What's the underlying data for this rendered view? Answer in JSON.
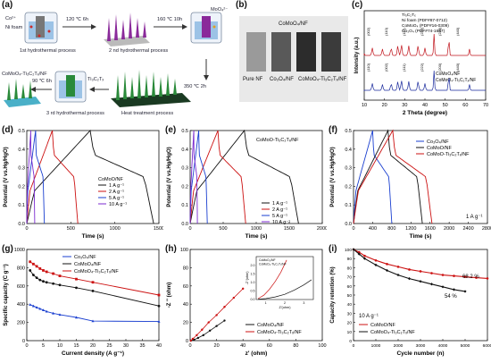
{
  "panels": {
    "a": "(a)",
    "b": "(b)",
    "c": "(c)",
    "d": "(d)",
    "e": "(e)",
    "f": "(f)",
    "g": "(g)",
    "h": "(h)",
    "i": "(i)"
  },
  "schematic": {
    "co_ion": "Co²⁺",
    "ni_foam": "Ni foam",
    "step1_cond": "120 ℃ 6h",
    "step1": "1st hydrothermal process",
    "step2_cond": "160 ℃ 10h",
    "moo4": "MoO₄²⁻",
    "step2": "2 nd hydrothermal process",
    "step3_cond": "350 ℃ 2h",
    "step3": "Heat treatment process",
    "step4_cond": "90 ℃ 6h",
    "ti3c2": "Ti₃C₂Tₓ",
    "step4": "3 rd hydrothermal process",
    "product": "CoMoO₄-Ti₃C₂Tₓ/NF"
  },
  "photos": {
    "top": "CoMoO₄/NF",
    "labels": [
      "Pure NF",
      "Co₃O₄/NF",
      "CoMoO₄-Ti₃C₂Tₓ/NF"
    ],
    "colors": [
      "#9a9a9a",
      "#595959",
      "#2c2c2c",
      "#3b3b3b"
    ]
  },
  "chart_data": [
    {
      "id": "c",
      "type": "line",
      "xlabel": "2 Theta (degree)",
      "ylabel": "Intensity (a.u.)",
      "xlim": [
        10,
        70
      ],
      "xticks": [
        10,
        20,
        30,
        40,
        50,
        60,
        70
      ],
      "legend_top": [
        "Ti₃C₂Tₓ",
        "Ni foam (PDF#87-0712)",
        "CoMoO₄ (PDF#16-0309)",
        "Co₃O₄ (PDF#74-1657)"
      ],
      "legend_bottom": [
        "CoMoO₄/NF",
        "CoMoO₄-Ti₃C₂Tₓ/NF"
      ],
      "series": [
        {
          "name": "CoMoO₄/NF",
          "color": "#1a2a9c",
          "peaks": [
            [
              14.0,
              0.35
            ],
            [
              19.0,
              0.3
            ],
            [
              23.3,
              0.35
            ],
            [
              26.6,
              0.45
            ],
            [
              28.4,
              0.5
            ],
            [
              32.0,
              0.45
            ],
            [
              36.6,
              0.45
            ],
            [
              40.0,
              0.35
            ],
            [
              44.5,
              1.0
            ],
            [
              51.8,
              0.85
            ],
            [
              62.0,
              0.3
            ]
          ]
        },
        {
          "name": "CoMoO₄-Ti₃C₂Tₓ/NF",
          "color": "#c0141c",
          "peaks": [
            [
              9.5,
              0.3
            ],
            [
              14.0,
              0.35
            ],
            [
              19.0,
              0.3
            ],
            [
              23.3,
              0.35
            ],
            [
              26.6,
              0.45
            ],
            [
              28.4,
              0.5
            ],
            [
              32.0,
              0.45
            ],
            [
              36.6,
              0.45
            ],
            [
              40.0,
              0.35
            ],
            [
              44.5,
              1.0
            ],
            [
              51.8,
              0.85
            ],
            [
              62.0,
              0.3
            ]
          ]
        }
      ],
      "hkl_top": [
        "(002)",
        "(110)",
        "(111)",
        "(222)",
        "(220)",
        "(440)"
      ],
      "hkl_bottom": [
        "(110)",
        "(002)",
        "(111)",
        "(222)",
        "(200)",
        "(440)"
      ]
    },
    {
      "id": "d",
      "type": "line",
      "xlabel": "Time (s)",
      "ylabel": "Potential (V vs.Hg/HgO)",
      "xlim": [
        0,
        1500
      ],
      "ylim": [
        0,
        0.5
      ],
      "xticks": [
        0,
        500,
        1000,
        1500
      ],
      "yticks": [
        0.0,
        0.1,
        0.2,
        0.3,
        0.4,
        0.5
      ],
      "legend_title": "CoMoO/NF",
      "series": [
        {
          "name": "1 A g⁻¹",
          "color": "#111111",
          "peak": 720,
          "end": 1440
        },
        {
          "name": "2 A g⁻¹",
          "color": "#cc1111",
          "peak": 290,
          "end": 580
        },
        {
          "name": "5 A g⁻¹",
          "color": "#1a3fd0",
          "peak": 100,
          "end": 200
        },
        {
          "name": "10 A g⁻¹",
          "color": "#7b2ad0",
          "peak": 45,
          "end": 90
        }
      ]
    },
    {
      "id": "e",
      "type": "line",
      "xlabel": "Time (s)",
      "ylabel": "Potential (V vs.Hg/HgO)",
      "xlim": [
        0,
        2000
      ],
      "ylim": [
        0,
        0.5
      ],
      "xticks": [
        0,
        500,
        1000,
        1500,
        2000
      ],
      "yticks": [
        0.0,
        0.1,
        0.2,
        0.3,
        0.4,
        0.5
      ],
      "legend_title": "CoMoO-Ti₃C₂Tₓ/NF",
      "series": [
        {
          "name": "1 A g⁻¹",
          "color": "#111111",
          "peak": 820,
          "end": 1640
        },
        {
          "name": "2 A g⁻¹",
          "color": "#cc1111",
          "peak": 420,
          "end": 840
        },
        {
          "name": "5 A g⁻¹",
          "color": "#1a3fd0",
          "peak": 130,
          "end": 260
        },
        {
          "name": "10 A g⁻¹",
          "color": "#7b2ad0",
          "peak": 55,
          "end": 110
        }
      ]
    },
    {
      "id": "f",
      "type": "line",
      "xlabel": "Time (s)",
      "ylabel": "Potential (V vs.Hg/HgO)",
      "xlim": [
        0,
        2800
      ],
      "ylim": [
        0,
        0.5
      ],
      "xticks": [
        0,
        400,
        800,
        1200,
        1600,
        2000,
        2400,
        2800
      ],
      "yticks": [
        0.0,
        0.1,
        0.2,
        0.3,
        0.4,
        0.5
      ],
      "annotation": "1 A g⁻¹",
      "series": [
        {
          "name": "Co₃O₄/NF",
          "color": "#1a3fd0",
          "peak": 400,
          "end": 800
        },
        {
          "name": "CoMoO/NF",
          "color": "#111111",
          "peak": 720,
          "end": 1440
        },
        {
          "name": "CoMoO-Ti₃C₂Tₓ/NF",
          "color": "#cc1111",
          "peak": 820,
          "end": 1640
        }
      ]
    },
    {
      "id": "g",
      "type": "line",
      "xlabel": "Current density (A g⁻¹)",
      "ylabel": "Specific capacity (C g⁻¹)",
      "xlim": [
        0,
        40
      ],
      "ylim": [
        0,
        1000
      ],
      "xticks": [
        0,
        5,
        10,
        15,
        20,
        25,
        30,
        35,
        40
      ],
      "yticks": [
        0,
        200,
        400,
        600,
        800,
        1000
      ],
      "series": [
        {
          "name": "Co₃O₄/NF",
          "color": "#1a3fd0",
          "x": [
            1,
            2,
            3,
            4,
            5,
            6,
            8,
            10,
            15,
            20,
            40
          ],
          "y": [
            395,
            380,
            365,
            350,
            335,
            320,
            300,
            285,
            255,
            215,
            210
          ]
        },
        {
          "name": "CoMoO₄/NF",
          "color": "#111111",
          "x": [
            1,
            2,
            3,
            4,
            5,
            6,
            8,
            10,
            15,
            20,
            40
          ],
          "y": [
            770,
            720,
            690,
            665,
            650,
            640,
            625,
            610,
            580,
            545,
            380
          ]
        },
        {
          "name": "CoMoO₄-Ti₃C₂Tₓ/NF",
          "color": "#cc1111",
          "x": [
            1,
            2,
            3,
            4,
            5,
            6,
            8,
            10,
            15,
            20,
            40
          ],
          "y": [
            865,
            840,
            815,
            790,
            770,
            755,
            735,
            710,
            675,
            640,
            500
          ]
        }
      ]
    },
    {
      "id": "h",
      "type": "scatter",
      "xlabel": "z' (ohm)",
      "ylabel": "-Z '' (ohm)",
      "xlim": [
        0,
        100
      ],
      "ylim": [
        0,
        100
      ],
      "xticks": [
        0,
        20,
        40,
        60,
        80,
        100
      ],
      "yticks": [
        0,
        20,
        40,
        60,
        80,
        100
      ],
      "series": [
        {
          "name": "CoMoO₄/NF",
          "color": "#111111",
          "x": [
            0.5,
            3,
            6,
            10,
            15,
            20,
            26
          ],
          "y": [
            0,
            1,
            3,
            6,
            11,
            16,
            22
          ]
        },
        {
          "name": "CoMoO₄-Ti₃C₂Tₓ/NF",
          "color": "#cc1111",
          "x": [
            0.5,
            2,
            5,
            9,
            14,
            20,
            26,
            33,
            40
          ],
          "y": [
            0,
            2,
            6,
            12,
            20,
            28,
            37,
            47,
            57
          ]
        }
      ],
      "inset": {
        "xlabel": "Z'(ohm)",
        "ylabel": "-Z''(ohm)",
        "xlim": [
          0.5,
          3.5
        ],
        "ylim": [
          0,
          2.5
        ],
        "xticks": [
          1,
          2,
          3
        ],
        "yticks": [
          0,
          0.5,
          1.0,
          1.5,
          2.0
        ],
        "legend": [
          "CoMoO₄/NF",
          "CoMoO₄-Ti₃C₂Tₓ/NF"
        ],
        "series": [
          {
            "name": "CoMoO₄/NF",
            "color": "#111111",
            "x": [
              0.6,
              1.0,
              1.5,
              2.0,
              2.5,
              3.0,
              3.4
            ],
            "y": [
              0.02,
              0.05,
              0.15,
              0.3,
              0.55,
              0.85,
              1.15
            ]
          },
          {
            "name": "CoMoO₄-Ti₃C₂Tₓ/NF",
            "color": "#cc1111",
            "x": [
              0.6,
              0.9,
              1.2,
              1.5,
              1.8,
              2.1
            ],
            "y": [
              0.05,
              0.25,
              0.6,
              1.05,
              1.6,
              2.3
            ]
          }
        ]
      }
    },
    {
      "id": "i",
      "type": "line",
      "xlabel": "Cycle number (n)",
      "ylabel": "Capacity retention (%)",
      "xlim": [
        0,
        6000
      ],
      "ylim": [
        0,
        100
      ],
      "xticks": [
        0,
        1000,
        2000,
        3000,
        4000,
        5000,
        6000
      ],
      "yticks": [
        0,
        10,
        20,
        30,
        40,
        50,
        60,
        70,
        80,
        90,
        100
      ],
      "annotation": "10 A g⁻¹",
      "end_labels": [
        "68.2 %",
        "54 %"
      ],
      "series": [
        {
          "name": "CoMoO/NF",
          "color": "#cc1111",
          "x": [
            0,
            250,
            500,
            1000,
            1500,
            2000,
            2500,
            3000,
            3500,
            4000,
            4500,
            5000,
            5500,
            6000
          ],
          "y": [
            100,
            97,
            93,
            88,
            84,
            81,
            78,
            76,
            74,
            72,
            71,
            70,
            69,
            68.2
          ]
        },
        {
          "name": "CoMoO₄-Ti₃C₂Tₓ/NF",
          "color": "#111111",
          "x": [
            0,
            250,
            500,
            1000,
            1500,
            2000,
            2500,
            3000,
            3500,
            4000,
            4500,
            5000
          ],
          "y": [
            100,
            95,
            90,
            83,
            77,
            72,
            68,
            65,
            62,
            59,
            56,
            54
          ]
        }
      ]
    }
  ]
}
